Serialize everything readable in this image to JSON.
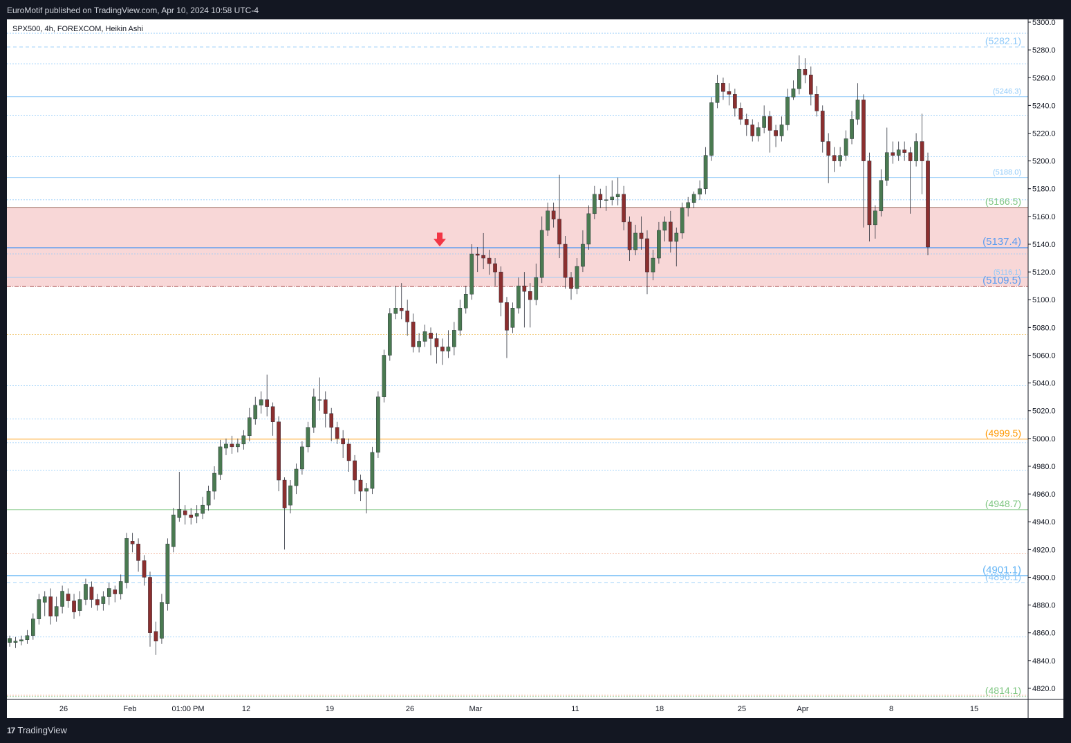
{
  "header": {
    "publisher_text": "EuroMotif published on TradingView.com, Apr 10, 2024 10:58 UTC-4"
  },
  "chart": {
    "symbol_text": "SPX500, 4h, FOREXCOM, Heikin Ashi"
  },
  "footer": {
    "brand_text": "TradingView",
    "brand_mark": "17"
  },
  "chart_data": {
    "type": "candlestick",
    "title": "SPX500, 4h, FOREXCOM, Heikin Ashi",
    "ylim": [
      4812,
      5302
    ],
    "y_ticks": [
      4820,
      4840,
      4860,
      4880,
      4900,
      4920,
      4940,
      4960,
      4980,
      5000,
      5020,
      5040,
      5060,
      5080,
      5100,
      5120,
      5140,
      5160,
      5180,
      5200,
      5220,
      5240,
      5260,
      5280,
      5300
    ],
    "y_tick_labels": [
      "4820.0",
      "4840.0",
      "4860.0",
      "4880.0",
      "4900.0",
      "4920.0",
      "4940.0",
      "4960.0",
      "4980.0",
      "5000.0",
      "5020.0",
      "5040.0",
      "5060.0",
      "5080.0",
      "5100.0",
      "5120.0",
      "5140.0",
      "5160.0",
      "5180.0",
      "5200.0",
      "5220.0",
      "5240.0",
      "5260.0",
      "5280.0",
      "5300.0"
    ],
    "x_labels": [
      "26",
      "Feb",
      "01:00 PM",
      "12",
      "19",
      "26",
      "Mar",
      "11",
      "18",
      "25",
      "Apr",
      "8",
      "15"
    ],
    "grid": false,
    "up_color": "#4a7a51",
    "down_color": "#8b2f2f",
    "zone": {
      "from": 5109.5,
      "to": 5166.5,
      "color": "#f8d7d7"
    },
    "arrow": {
      "value": 5137.4,
      "position": "near 29 Feb, pointing down to the level",
      "color": "#f23645"
    },
    "levels": [
      {
        "value": 5282.1,
        "label": "(5282.1)",
        "color": "#90caf9",
        "style": "dashed"
      },
      {
        "value": 5246.3,
        "label": "(5246.3)",
        "color": "#90caf9",
        "style": "solid"
      },
      {
        "value": 5188.0,
        "label": "(5188.0)",
        "color": "#90caf9",
        "style": "solid"
      },
      {
        "value": 5166.5,
        "label": "(5166.5)",
        "color": "#81c784",
        "style": "solid-brown-line"
      },
      {
        "value": 5137.4,
        "label": "(5137.4)",
        "color": "#5b9cf0",
        "style": "thick"
      },
      {
        "value": 5116.1,
        "label": "(5116.1)",
        "color": "#90caf9",
        "style": "solid"
      },
      {
        "value": 5109.5,
        "label": "(5109.5)",
        "color": "#5b9cf0",
        "style": "dash-dot"
      },
      {
        "value": 4999.5,
        "label": "(4999.5)",
        "color": "#ff9800",
        "style": "solid"
      },
      {
        "value": 4948.7,
        "label": "(4948.7)",
        "color": "#81c784",
        "style": "solid"
      },
      {
        "value": 4901.1,
        "label": "(4901.1)",
        "color": "#64b5f6",
        "style": "thick"
      },
      {
        "value": 4896.1,
        "label": "(4896.1)",
        "color": "#90caf9",
        "style": "dashed"
      },
      {
        "value": 4814.1,
        "label": "(4814.1)",
        "color": "#81c784",
        "style": "dotted"
      }
    ],
    "dotted_lines": [
      {
        "value": 5292,
        "color": "#90caf9"
      },
      {
        "value": 5270,
        "color": "#90caf9"
      },
      {
        "value": 5233,
        "color": "#90caf9"
      },
      {
        "value": 5203,
        "color": "#90caf9"
      },
      {
        "value": 5172,
        "color": "#90caf9"
      },
      {
        "value": 5133,
        "color": "#90caf9"
      },
      {
        "value": 5075,
        "color": "#f0c060"
      },
      {
        "value": 5038,
        "color": "#90caf9"
      },
      {
        "value": 5014,
        "color": "#90caf9"
      },
      {
        "value": 4997,
        "color": "#90caf9"
      },
      {
        "value": 4977,
        "color": "#90caf9"
      },
      {
        "value": 4917,
        "color": "#f0a080"
      },
      {
        "value": 4857,
        "color": "#90caf9"
      },
      {
        "value": 4815,
        "color": "#f0a080"
      }
    ],
    "candles": [
      [
        4853,
        4856,
        4850,
        4858
      ],
      [
        4853,
        4854,
        4849,
        4857
      ],
      [
        4854,
        4855,
        4851,
        4858
      ],
      [
        4855,
        4858,
        4852,
        4862
      ],
      [
        4858,
        4870,
        4855,
        4874
      ],
      [
        4870,
        4884,
        4866,
        4888
      ],
      [
        4882,
        4886,
        4872,
        4890
      ],
      [
        4886,
        4872,
        4866,
        4892
      ],
      [
        4872,
        4879,
        4868,
        4886
      ],
      [
        4879,
        4890,
        4874,
        4894
      ],
      [
        4888,
        4883,
        4878,
        4892
      ],
      [
        4883,
        4875,
        4870,
        4888
      ],
      [
        4876,
        4884,
        4872,
        4890
      ],
      [
        4884,
        4895,
        4880,
        4899
      ],
      [
        4893,
        4884,
        4878,
        4897
      ],
      [
        4884,
        4880,
        4876,
        4888
      ],
      [
        4881,
        4886,
        4876,
        4890
      ],
      [
        4886,
        4892,
        4880,
        4896
      ],
      [
        4891,
        4888,
        4882,
        4894
      ],
      [
        4888,
        4897,
        4884,
        4902
      ],
      [
        4896,
        4928,
        4892,
        4932
      ],
      [
        4926,
        4924,
        4918,
        4932
      ],
      [
        4924,
        4912,
        4904,
        4928
      ],
      [
        4912,
        4900,
        4894,
        4916
      ],
      [
        4900,
        4860,
        4850,
        4904
      ],
      [
        4861,
        4854,
        4844,
        4868
      ],
      [
        4856,
        4882,
        4852,
        4888
      ],
      [
        4881,
        4924,
        4876,
        4928
      ],
      [
        4922,
        4945,
        4918,
        4950
      ],
      [
        4943,
        4949,
        4940,
        4976
      ],
      [
        4948,
        4945,
        4938,
        4952
      ],
      [
        4945,
        4943,
        4938,
        4950
      ],
      [
        4944,
        4946,
        4939,
        4952
      ],
      [
        4946,
        4952,
        4942,
        4958
      ],
      [
        4952,
        4962,
        4948,
        4966
      ],
      [
        4962,
        4975,
        4956,
        4980
      ],
      [
        4974,
        4994,
        4970,
        4999
      ],
      [
        4993,
        4996,
        4988,
        5000
      ],
      [
        4996,
        4994,
        4989,
        5002
      ],
      [
        4994,
        4996,
        4990,
        5000
      ],
      [
        4996,
        5002,
        4992,
        5006
      ],
      [
        5002,
        5015,
        4998,
        5022
      ],
      [
        5014,
        5024,
        5010,
        5030
      ],
      [
        5024,
        5028,
        5018,
        5034
      ],
      [
        5028,
        5023,
        5016,
        5046
      ],
      [
        5023,
        5012,
        5002,
        5026
      ],
      [
        5012,
        4970,
        4962,
        5016
      ],
      [
        4970,
        4950,
        4920,
        4972
      ],
      [
        4952,
        4966,
        4946,
        4970
      ],
      [
        4966,
        4978,
        4960,
        4982
      ],
      [
        4978,
        4994,
        4974,
        4998
      ],
      [
        4994,
        5008,
        4990,
        5012
      ],
      [
        5008,
        5030,
        5004,
        5036
      ],
      [
        5028,
        5028,
        5020,
        5044
      ],
      [
        5028,
        5018,
        5008,
        5034
      ],
      [
        5018,
        5008,
        4998,
        5022
      ],
      [
        5008,
        5000,
        4996,
        5012
      ],
      [
        5000,
        4996,
        4986,
        5006
      ],
      [
        4996,
        4984,
        4976,
        5000
      ],
      [
        4984,
        4970,
        4960,
        4988
      ],
      [
        4970,
        4962,
        4955,
        4974
      ],
      [
        4962,
        4964,
        4946,
        4968
      ],
      [
        4964,
        4990,
        4960,
        4994
      ],
      [
        4990,
        5030,
        4986,
        5034
      ],
      [
        5030,
        5060,
        5026,
        5064
      ],
      [
        5060,
        5090,
        5056,
        5094
      ],
      [
        5090,
        5094,
        5086,
        5110
      ],
      [
        5094,
        5092,
        5086,
        5112
      ],
      [
        5092,
        5084,
        5074,
        5100
      ],
      [
        5084,
        5066,
        5062,
        5090
      ],
      [
        5066,
        5070,
        5062,
        5076
      ],
      [
        5070,
        5077,
        5066,
        5082
      ],
      [
        5076,
        5072,
        5060,
        5080
      ],
      [
        5072,
        5066,
        5054,
        5076
      ],
      [
        5066,
        5063,
        5053,
        5072
      ],
      [
        5063,
        5066,
        5058,
        5078
      ],
      [
        5066,
        5078,
        5060,
        5084
      ],
      [
        5078,
        5094,
        5074,
        5100
      ],
      [
        5094,
        5104,
        5090,
        5110
      ],
      [
        5104,
        5133,
        5100,
        5140
      ],
      [
        5133,
        5132,
        5120,
        5138
      ],
      [
        5132,
        5130,
        5122,
        5148
      ],
      [
        5130,
        5126,
        5118,
        5136
      ],
      [
        5126,
        5120,
        5110,
        5130
      ],
      [
        5120,
        5098,
        5088,
        5124
      ],
      [
        5098,
        5078,
        5058,
        5102
      ],
      [
        5080,
        5094,
        5076,
        5098
      ],
      [
        5094,
        5110,
        5090,
        5116
      ],
      [
        5110,
        5106,
        5080,
        5120
      ],
      [
        5106,
        5100,
        5080,
        5112
      ],
      [
        5100,
        5116,
        5096,
        5126
      ],
      [
        5116,
        5150,
        5112,
        5160
      ],
      [
        5150,
        5164,
        5146,
        5170
      ],
      [
        5164,
        5158,
        5152,
        5170
      ],
      [
        5158,
        5140,
        5130,
        5190
      ],
      [
        5140,
        5116,
        5108,
        5146
      ],
      [
        5116,
        5108,
        5100,
        5120
      ],
      [
        5108,
        5124,
        5104,
        5130
      ],
      [
        5124,
        5140,
        5120,
        5150
      ],
      [
        5140,
        5162,
        5136,
        5168
      ],
      [
        5162,
        5176,
        5158,
        5182
      ],
      [
        5176,
        5172,
        5166,
        5180
      ],
      [
        5172,
        5172,
        5164,
        5182
      ],
      [
        5172,
        5174,
        5168,
        5186
      ],
      [
        5174,
        5176,
        5168,
        5188
      ],
      [
        5176,
        5156,
        5150,
        5182
      ],
      [
        5156,
        5136,
        5128,
        5160
      ],
      [
        5136,
        5148,
        5132,
        5154
      ],
      [
        5148,
        5144,
        5136,
        5160
      ],
      [
        5144,
        5120,
        5104,
        5150
      ],
      [
        5120,
        5130,
        5114,
        5136
      ],
      [
        5130,
        5150,
        5126,
        5156
      ],
      [
        5150,
        5156,
        5142,
        5160
      ],
      [
        5156,
        5142,
        5134,
        5164
      ],
      [
        5142,
        5148,
        5124,
        5152
      ],
      [
        5148,
        5166,
        5144,
        5170
      ],
      [
        5166,
        5170,
        5160,
        5174
      ],
      [
        5170,
        5176,
        5166,
        5178
      ],
      [
        5176,
        5180,
        5172,
        5186
      ],
      [
        5180,
        5204,
        5176,
        5210
      ],
      [
        5204,
        5242,
        5200,
        5246
      ],
      [
        5242,
        5256,
        5238,
        5262
      ],
      [
        5256,
        5250,
        5244,
        5260
      ],
      [
        5250,
        5248,
        5240,
        5256
      ],
      [
        5248,
        5238,
        5232,
        5252
      ],
      [
        5238,
        5230,
        5226,
        5242
      ],
      [
        5230,
        5226,
        5218,
        5234
      ],
      [
        5226,
        5218,
        5214,
        5230
      ],
      [
        5218,
        5224,
        5214,
        5228
      ],
      [
        5224,
        5232,
        5220,
        5240
      ],
      [
        5232,
        5222,
        5206,
        5236
      ],
      [
        5222,
        5218,
        5210,
        5226
      ],
      [
        5218,
        5226,
        5214,
        5232
      ],
      [
        5226,
        5246,
        5222,
        5252
      ],
      [
        5246,
        5252,
        5244,
        5258
      ],
      [
        5252,
        5266,
        5248,
        5276
      ],
      [
        5266,
        5262,
        5256,
        5274
      ],
      [
        5262,
        5248,
        5240,
        5268
      ],
      [
        5248,
        5236,
        5232,
        5254
      ],
      [
        5236,
        5214,
        5206,
        5240
      ],
      [
        5214,
        5204,
        5184,
        5220
      ],
      [
        5204,
        5200,
        5192,
        5210
      ],
      [
        5200,
        5204,
        5196,
        5210
      ],
      [
        5204,
        5216,
        5200,
        5222
      ],
      [
        5216,
        5230,
        5212,
        5236
      ],
      [
        5230,
        5244,
        5226,
        5256
      ],
      [
        5244,
        5200,
        5152,
        5248
      ],
      [
        5200,
        5154,
        5142,
        5206
      ],
      [
        5154,
        5164,
        5144,
        5168
      ],
      [
        5164,
        5186,
        5160,
        5194
      ],
      [
        5186,
        5206,
        5182,
        5224
      ],
      [
        5206,
        5204,
        5198,
        5214
      ],
      [
        5204,
        5208,
        5200,
        5214
      ],
      [
        5208,
        5206,
        5200,
        5214
      ],
      [
        5206,
        5200,
        5162,
        5210
      ],
      [
        5200,
        5214,
        5196,
        5220
      ],
      [
        5214,
        5200,
        5176,
        5234
      ],
      [
        5200,
        5138,
        5132,
        5206
      ]
    ]
  }
}
